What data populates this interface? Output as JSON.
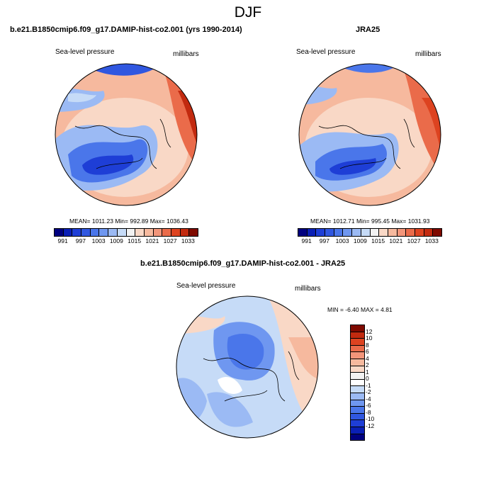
{
  "title": "DJF",
  "variable_label": "Sea-level pressure",
  "units_label": "millibars",
  "panels": {
    "left": {
      "title": "b.e21.B1850cmip6.f09_g17.DAMIP-hist-co2.001 (yrs 1990-2014)",
      "stats": "MEAN= 1011.23  Min= 992.89  Max= 1036.43",
      "mean": 1011.23,
      "min": 992.89,
      "max": 1036.43
    },
    "right": {
      "title": "JRA25",
      "stats": "MEAN= 1012.71  Min= 995.45  Max= 1031.93",
      "mean": 1012.71,
      "min": 995.45,
      "max": 1031.93
    },
    "diff": {
      "title": "b.e21.B1850cmip6.f09_g17.DAMIP-hist-co2.001 - JRA25",
      "stats": "MIN =  -6.40 MAX =   4.81",
      "min": -6.4,
      "max": 4.81
    }
  },
  "colorbar_abs": {
    "colors": [
      "#00007f",
      "#0a1fb5",
      "#1e3ed6",
      "#3057e0",
      "#4a76ea",
      "#6f97f0",
      "#9bbaf4",
      "#c6dbf7",
      "#f2f2f2",
      "#f9d8c6",
      "#f6b99e",
      "#f2957a",
      "#ea6b4a",
      "#dd4320",
      "#c22a0f",
      "#7f0a00"
    ],
    "tick_labels": [
      "991",
      "997",
      "1003",
      "1009",
      "1015",
      "1021",
      "1027",
      "1033"
    ]
  },
  "colorbar_diff": {
    "colors": [
      "#7f0a00",
      "#c22a0f",
      "#dd4320",
      "#ea6b4a",
      "#f2957a",
      "#f6b99e",
      "#f9d8c6",
      "#f2f2f2",
      "#ffffff",
      "#c6dbf7",
      "#9bbaf4",
      "#6f97f0",
      "#4a76ea",
      "#3057e0",
      "#1e3ed6",
      "#0a1fb5",
      "#00007f"
    ],
    "tick_labels": [
      "12",
      "10",
      "8",
      "6",
      "4",
      "2",
      "1",
      "0",
      "-1",
      "-2",
      "-4",
      "-6",
      "-8",
      "-10",
      "-12"
    ]
  }
}
